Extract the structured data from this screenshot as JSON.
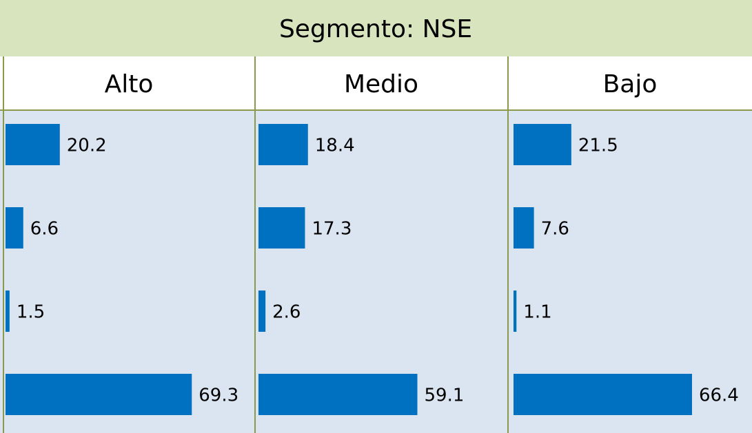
{
  "title": "Segmento: NSE",
  "chart_data": [
    {
      "type": "bar",
      "title": "Alto",
      "categories": [
        null,
        null,
        null,
        null
      ],
      "values": [
        20.2,
        6.6,
        1.5,
        69.3
      ],
      "color": "#0070c0"
    },
    {
      "type": "bar",
      "title": "Medio",
      "categories": [
        null,
        null,
        null,
        null
      ],
      "values": [
        18.4,
        17.3,
        2.6,
        59.1
      ],
      "color": "#0070c0"
    },
    {
      "type": "bar",
      "title": "Bajo",
      "categories": [
        null,
        null,
        null,
        null
      ],
      "values": [
        21.5,
        7.6,
        1.1,
        66.4
      ],
      "color": "#0070c0"
    }
  ]
}
